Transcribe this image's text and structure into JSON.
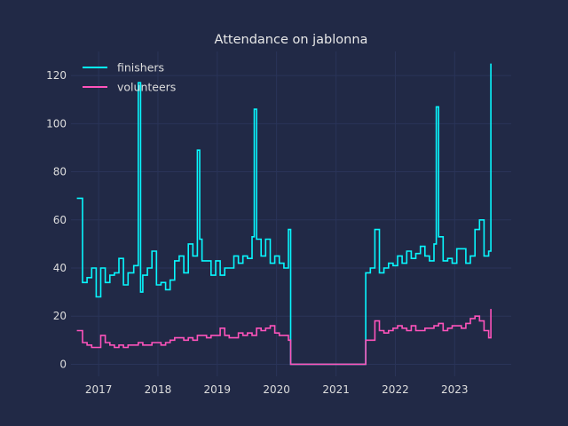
{
  "chart_data": {
    "type": "line",
    "title": "Attendance on jablonna",
    "xlabel": "",
    "ylabel": "",
    "x_ticks": [
      "2017",
      "2018",
      "2019",
      "2020",
      "2021",
      "2022",
      "2023"
    ],
    "y_ticks": [
      "0",
      "20",
      "40",
      "60",
      "80",
      "100",
      "120"
    ],
    "xlim": [
      "2016-07-15",
      "2023-12-15"
    ],
    "ylim": [
      -5,
      130
    ],
    "grid": true,
    "legend_position": "top-left",
    "background": "#212946",
    "series": [
      {
        "name": "finishers",
        "color": "#08F7FE",
        "points": [
          [
            "2016-08-20",
            69
          ],
          [
            "2016-09-24",
            34
          ],
          [
            "2016-10-22",
            36
          ],
          [
            "2016-11-19",
            40
          ],
          [
            "2016-12-17",
            28
          ],
          [
            "2017-01-14",
            40
          ],
          [
            "2017-02-11",
            34
          ],
          [
            "2017-03-11",
            37
          ],
          [
            "2017-04-08",
            38
          ],
          [
            "2017-05-06",
            44
          ],
          [
            "2017-06-03",
            33
          ],
          [
            "2017-07-01",
            38
          ],
          [
            "2017-08-05",
            41
          ],
          [
            "2017-09-02",
            117
          ],
          [
            "2017-09-16",
            30
          ],
          [
            "2017-09-30",
            37
          ],
          [
            "2017-10-28",
            40
          ],
          [
            "2017-11-25",
            47
          ],
          [
            "2017-12-23",
            33
          ],
          [
            "2018-01-20",
            34
          ],
          [
            "2018-02-17",
            31
          ],
          [
            "2018-03-17",
            35
          ],
          [
            "2018-04-14",
            43
          ],
          [
            "2018-05-12",
            45
          ],
          [
            "2018-06-09",
            38
          ],
          [
            "2018-07-07",
            50
          ],
          [
            "2018-08-04",
            45
          ],
          [
            "2018-09-01",
            89
          ],
          [
            "2018-09-15",
            52
          ],
          [
            "2018-09-29",
            43
          ],
          [
            "2018-10-27",
            43
          ],
          [
            "2018-11-24",
            37
          ],
          [
            "2018-12-22",
            43
          ],
          [
            "2019-01-19",
            37
          ],
          [
            "2019-02-16",
            40
          ],
          [
            "2019-03-16",
            40
          ],
          [
            "2019-04-13",
            45
          ],
          [
            "2019-05-11",
            42
          ],
          [
            "2019-06-08",
            45
          ],
          [
            "2019-07-06",
            44
          ],
          [
            "2019-08-03",
            53
          ],
          [
            "2019-08-17",
            106
          ],
          [
            "2019-08-31",
            52
          ],
          [
            "2019-09-28",
            45
          ],
          [
            "2019-10-26",
            52
          ],
          [
            "2019-11-23",
            42
          ],
          [
            "2019-12-21",
            45
          ],
          [
            "2020-01-18",
            42
          ],
          [
            "2020-02-15",
            40
          ],
          [
            "2020-03-14",
            56
          ],
          [
            "2020-03-28",
            0
          ],
          [
            "2021-06-19",
            0
          ],
          [
            "2021-07-03",
            38
          ],
          [
            "2021-07-31",
            40
          ],
          [
            "2021-08-28",
            56
          ],
          [
            "2021-09-25",
            38
          ],
          [
            "2021-10-23",
            40
          ],
          [
            "2021-11-20",
            42
          ],
          [
            "2021-12-18",
            41
          ],
          [
            "2022-01-15",
            45
          ],
          [
            "2022-02-12",
            42
          ],
          [
            "2022-03-12",
            47
          ],
          [
            "2022-04-09",
            44
          ],
          [
            "2022-05-07",
            46
          ],
          [
            "2022-06-04",
            49
          ],
          [
            "2022-07-02",
            45
          ],
          [
            "2022-07-30",
            43
          ],
          [
            "2022-08-27",
            50
          ],
          [
            "2022-09-10",
            107
          ],
          [
            "2022-09-24",
            53
          ],
          [
            "2022-10-22",
            43
          ],
          [
            "2022-11-19",
            44
          ],
          [
            "2022-12-17",
            42
          ],
          [
            "2023-01-14",
            48
          ],
          [
            "2023-02-11",
            48
          ],
          [
            "2023-03-11",
            42
          ],
          [
            "2023-04-08",
            45
          ],
          [
            "2023-05-06",
            56
          ],
          [
            "2023-06-03",
            60
          ],
          [
            "2023-07-01",
            45
          ],
          [
            "2023-07-29",
            47
          ],
          [
            "2023-08-12",
            125
          ]
        ]
      },
      {
        "name": "volunteers",
        "color": "#FE53BB",
        "points": [
          [
            "2016-08-20",
            14
          ],
          [
            "2016-09-24",
            9
          ],
          [
            "2016-10-22",
            8
          ],
          [
            "2016-11-19",
            7
          ],
          [
            "2016-12-17",
            7
          ],
          [
            "2017-01-14",
            12
          ],
          [
            "2017-02-11",
            9
          ],
          [
            "2017-03-11",
            8
          ],
          [
            "2017-04-08",
            7
          ],
          [
            "2017-05-06",
            8
          ],
          [
            "2017-06-03",
            7
          ],
          [
            "2017-07-01",
            8
          ],
          [
            "2017-08-05",
            8
          ],
          [
            "2017-09-02",
            9
          ],
          [
            "2017-09-30",
            8
          ],
          [
            "2017-10-28",
            8
          ],
          [
            "2017-11-25",
            9
          ],
          [
            "2017-12-23",
            9
          ],
          [
            "2018-01-20",
            8
          ],
          [
            "2018-02-17",
            9
          ],
          [
            "2018-03-17",
            10
          ],
          [
            "2018-04-14",
            11
          ],
          [
            "2018-05-12",
            11
          ],
          [
            "2018-06-09",
            10
          ],
          [
            "2018-07-07",
            11
          ],
          [
            "2018-08-04",
            10
          ],
          [
            "2018-09-01",
            12
          ],
          [
            "2018-09-29",
            12
          ],
          [
            "2018-10-27",
            11
          ],
          [
            "2018-11-24",
            12
          ],
          [
            "2018-12-22",
            12
          ],
          [
            "2019-01-19",
            15
          ],
          [
            "2019-02-16",
            12
          ],
          [
            "2019-03-16",
            11
          ],
          [
            "2019-04-13",
            11
          ],
          [
            "2019-05-11",
            13
          ],
          [
            "2019-06-08",
            12
          ],
          [
            "2019-07-06",
            13
          ],
          [
            "2019-08-03",
            12
          ],
          [
            "2019-08-31",
            15
          ],
          [
            "2019-09-28",
            14
          ],
          [
            "2019-10-26",
            15
          ],
          [
            "2019-11-23",
            16
          ],
          [
            "2019-12-21",
            13
          ],
          [
            "2020-01-18",
            12
          ],
          [
            "2020-02-15",
            12
          ],
          [
            "2020-03-14",
            10
          ],
          [
            "2020-03-28",
            0
          ],
          [
            "2021-06-19",
            0
          ],
          [
            "2021-07-03",
            10
          ],
          [
            "2021-07-31",
            10
          ],
          [
            "2021-08-28",
            18
          ],
          [
            "2021-09-25",
            14
          ],
          [
            "2021-10-23",
            13
          ],
          [
            "2021-11-20",
            14
          ],
          [
            "2021-12-18",
            15
          ],
          [
            "2022-01-15",
            16
          ],
          [
            "2022-02-12",
            15
          ],
          [
            "2022-03-12",
            14
          ],
          [
            "2022-04-09",
            16
          ],
          [
            "2022-05-07",
            14
          ],
          [
            "2022-06-04",
            14
          ],
          [
            "2022-07-02",
            15
          ],
          [
            "2022-07-30",
            15
          ],
          [
            "2022-08-27",
            16
          ],
          [
            "2022-09-24",
            17
          ],
          [
            "2022-10-22",
            14
          ],
          [
            "2022-11-19",
            15
          ],
          [
            "2022-12-17",
            16
          ],
          [
            "2023-01-14",
            16
          ],
          [
            "2023-02-11",
            15
          ],
          [
            "2023-03-11",
            17
          ],
          [
            "2023-04-08",
            19
          ],
          [
            "2023-05-06",
            20
          ],
          [
            "2023-06-03",
            18
          ],
          [
            "2023-07-01",
            14
          ],
          [
            "2023-07-29",
            11
          ],
          [
            "2023-08-12",
            23
          ]
        ]
      }
    ]
  }
}
